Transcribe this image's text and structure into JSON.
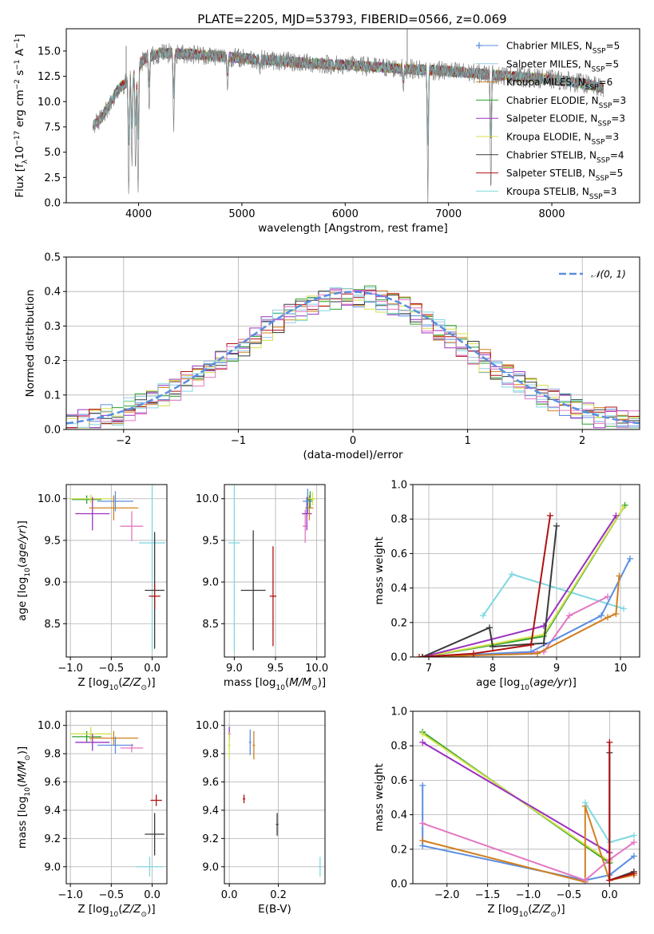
{
  "chart_data": [
    {
      "type": "line",
      "panel": "spectrum",
      "title": "PLATE=2205, MJD=53793, FIBERID=0566, z=0.069",
      "xlabel": "wavelength [Angstrom, rest frame]",
      "ylabel": "Flux [f",
      "xlim": [
        3300,
        8850
      ],
      "ylim": [
        0,
        17.2
      ],
      "xticks": [
        4000,
        5000,
        6000,
        7000,
        8000
      ],
      "yticks": [
        0.0,
        2.5,
        5.0,
        7.5,
        10.0,
        12.5,
        15.0
      ],
      "legend_position": "upper right",
      "data_color": "#808080",
      "series": [
        {
          "name": "Chabrier MILES, N",
          "nssp": "=5",
          "color": "#5a8ee0"
        },
        {
          "name": "Salpeter MILES, N",
          "nssp": "=5",
          "color": "#9ecae1"
        },
        {
          "name": "Kroupa MILES, N",
          "nssp": "=6",
          "color": "#d08020"
        },
        {
          "name": "Chabrier ELODIE, N",
          "nssp": "=3",
          "color": "#2ca02c"
        },
        {
          "name": "Salpeter ELODIE, N",
          "nssp": "=3",
          "color": "#9b30c0"
        },
        {
          "name": "Kroupa ELODIE, N",
          "nssp": "=3",
          "color": "#d4e04c"
        },
        {
          "name": "Chabrier STELIB, N",
          "nssp": "=4",
          "color": "#3a3a3a"
        },
        {
          "name": "Salpeter STELIB, N",
          "nssp": "=5",
          "color": "#b01010"
        },
        {
          "name": "Kroupa STELIB, N",
          "nssp": "=3",
          "color": "#7fd8e0"
        }
      ],
      "continuum": {
        "x": [
          3550,
          3650,
          3800,
          3950,
          4050,
          4200,
          4500,
          5000,
          5500,
          6000,
          6500,
          7000,
          7500,
          8000,
          8300,
          8500
        ],
        "y": [
          7.5,
          8.5,
          11.2,
          12.5,
          14.2,
          14.8,
          14.7,
          14.3,
          13.9,
          13.6,
          13.3,
          13.0,
          12.6,
          12.2,
          11.8,
          11.3
        ]
      },
      "features": [
        {
          "x": 3905,
          "y": 0.0
        },
        {
          "x": 3935,
          "y": 3.0
        },
        {
          "x": 3970,
          "y": 2.2
        },
        {
          "x": 3995,
          "y": 0.0
        },
        {
          "x": 4102,
          "y": 8.5
        },
        {
          "x": 4340,
          "y": 7.0
        },
        {
          "x": 4861,
          "y": 10.8
        },
        {
          "x": 5175,
          "y": 12.6
        },
        {
          "x": 5893,
          "y": 12.8
        },
        {
          "x": 6563,
          "y": 10.8
        },
        {
          "x": 6800,
          "y": 0.0
        },
        {
          "x": 7410,
          "y": 0.0
        }
      ],
      "spikes": [
        {
          "x": 3880,
          "y": 15.5
        },
        {
          "x": 6600,
          "y": 17.2
        }
      ]
    },
    {
      "type": "histogram",
      "panel": "residuals",
      "xlabel": "(data-model)/error",
      "ylabel": "Normed distribution",
      "xlim": [
        -2.5,
        2.5
      ],
      "ylim": [
        0,
        0.5
      ],
      "xticks": [
        -2,
        -1,
        0,
        1,
        2
      ],
      "yticks": [
        0.0,
        0.1,
        0.2,
        0.3,
        0.4,
        0.5
      ],
      "legend": "𝒩(0, 1)",
      "bin_width": 0.1,
      "gaussian": {
        "mean": 0,
        "sigma": 1,
        "color": "#5a8ee0"
      }
    },
    {
      "type": "scatter",
      "panel": "age-vs-metallicity",
      "xlabel": "Z [log",
      "ylabel": "age  [log",
      "xlim": [
        -1.05,
        0.18
      ],
      "ylim": [
        8.1,
        10.17
      ],
      "xticks": [
        -1.0,
        -0.5,
        0.0
      ],
      "yticks": [
        8.5,
        9.0,
        9.5,
        10.0
      ],
      "points": [
        {
          "x": -0.8,
          "y": 9.99,
          "xerr": 0.18,
          "yerr": 0.05,
          "color": "#2ca02c"
        },
        {
          "x": -0.75,
          "y": 10.0,
          "xerr": 0.25,
          "yerr": 0.05,
          "color": "#d4e04c"
        },
        {
          "x": -0.73,
          "y": 9.82,
          "xerr": 0.21,
          "yerr": 0.2,
          "color": "#9b30c0"
        },
        {
          "x": -0.45,
          "y": 9.97,
          "xerr": 0.22,
          "yerr": 0.12,
          "color": "#5a8ee0"
        },
        {
          "x": -0.47,
          "y": 9.89,
          "xerr": 0.3,
          "yerr": 0.15,
          "color": "#d08020"
        },
        {
          "x": -0.25,
          "y": 9.67,
          "xerr": 0.14,
          "yerr": 0.18,
          "color": "#e377c2"
        },
        {
          "x": 0.0,
          "y": 9.47,
          "xerr": 0.16,
          "yerr": 1.3,
          "color": "#7fd8e0"
        },
        {
          "x": 0.03,
          "y": 8.9,
          "xerr": 0.12,
          "yerr": 0.7,
          "color": "#3a3a3a"
        },
        {
          "x": 0.03,
          "y": 8.83,
          "xerr": 0.07,
          "yerr": 0.16,
          "color": "#b01010"
        }
      ]
    },
    {
      "type": "scatter",
      "panel": "age-vs-mass",
      "xlabel": "mass [log",
      "ylabel": "",
      "xlim": [
        8.88,
        10.1
      ],
      "ylim": [
        8.1,
        10.17
      ],
      "xticks": [
        9.0,
        9.5,
        10.0
      ],
      "yticks": [
        8.5,
        9.0,
        9.5,
        10.0
      ],
      "points": [
        {
          "x": 9.0,
          "y": 9.47,
          "xerr": 0.07,
          "yerr": 1.3,
          "color": "#7fd8e0"
        },
        {
          "x": 9.23,
          "y": 8.9,
          "xerr": 0.15,
          "yerr": 0.72,
          "color": "#3a3a3a"
        },
        {
          "x": 9.47,
          "y": 8.83,
          "xerr": 0.04,
          "yerr": 0.6,
          "color": "#b01010"
        },
        {
          "x": 9.86,
          "y": 9.67,
          "xerr": 0.03,
          "yerr": 0.2,
          "color": "#e377c2"
        },
        {
          "x": 9.88,
          "y": 9.82,
          "xerr": 0.06,
          "yerr": 0.2,
          "color": "#9b30c0"
        },
        {
          "x": 9.91,
          "y": 9.89,
          "xerr": 0.05,
          "yerr": 0.15,
          "color": "#d08020"
        },
        {
          "x": 9.89,
          "y": 9.97,
          "xerr": 0.06,
          "yerr": 0.15,
          "color": "#5a8ee0"
        },
        {
          "x": 9.92,
          "y": 9.99,
          "xerr": 0.04,
          "yerr": 0.1,
          "color": "#2ca02c"
        },
        {
          "x": 9.95,
          "y": 10.0,
          "xerr": 0.04,
          "yerr": 0.08,
          "color": "#d4e04c"
        }
      ]
    },
    {
      "type": "line",
      "panel": "mass-weight-vs-age",
      "xlabel": "age  [log",
      "ylabel": "mass weight",
      "xlim": [
        6.75,
        10.3
      ],
      "ylim": [
        0.0,
        1.0
      ],
      "xticks": [
        7,
        8,
        9,
        10
      ],
      "yticks": [
        0.0,
        0.2,
        0.4,
        0.6,
        0.8,
        1.0
      ],
      "series": [
        {
          "color": "#7fd8e0",
          "x": [
            7.85,
            8.3,
            10.05
          ],
          "y": [
            0.24,
            0.48,
            0.28
          ]
        },
        {
          "color": "#e377c2",
          "x": [
            6.9,
            8.8,
            9.2,
            9.8
          ],
          "y": [
            0.0,
            0.03,
            0.24,
            0.35
          ]
        },
        {
          "color": "#5a8ee0",
          "x": [
            6.9,
            8.6,
            9.7,
            10.15
          ],
          "y": [
            0.0,
            0.03,
            0.24,
            0.57
          ]
        },
        {
          "color": "#d08020",
          "x": [
            6.9,
            8.7,
            9.8,
            9.93,
            9.98
          ],
          "y": [
            0.0,
            0.02,
            0.23,
            0.25,
            0.47
          ]
        },
        {
          "color": "#2ca02c",
          "x": [
            6.9,
            8.8,
            10.07
          ],
          "y": [
            0.0,
            0.12,
            0.88
          ]
        },
        {
          "color": "#d4e04c",
          "x": [
            6.9,
            8.8,
            10.05
          ],
          "y": [
            0.0,
            0.13,
            0.87
          ]
        },
        {
          "color": "#9b30c0",
          "x": [
            6.9,
            8.8,
            9.93
          ],
          "y": [
            0.0,
            0.18,
            0.82
          ]
        },
        {
          "color": "#3a3a3a",
          "x": [
            6.9,
            7.95,
            8.0,
            8.8,
            9.0
          ],
          "y": [
            0.0,
            0.17,
            0.06,
            0.08,
            0.76
          ]
        },
        {
          "color": "#b01010",
          "x": [
            6.85,
            7.7,
            8.6,
            8.9
          ],
          "y": [
            0.0,
            0.02,
            0.07,
            0.82
          ]
        }
      ]
    },
    {
      "type": "scatter",
      "panel": "mass-vs-metallicity",
      "xlabel": "Z [log",
      "ylabel": "mass [log",
      "xlim": [
        -1.05,
        0.18
      ],
      "ylim": [
        8.88,
        10.1
      ],
      "xticks": [
        -1.0,
        -0.5,
        0.0
      ],
      "yticks": [
        9.0,
        9.2,
        9.4,
        9.6,
        9.8,
        10.0
      ],
      "points": [
        {
          "x": -0.8,
          "y": 9.92,
          "xerr": 0.18,
          "yerr": 0.04,
          "color": "#2ca02c"
        },
        {
          "x": -0.75,
          "y": 9.94,
          "xerr": 0.25,
          "yerr": 0.05,
          "color": "#d4e04c"
        },
        {
          "x": -0.73,
          "y": 9.88,
          "xerr": 0.21,
          "yerr": 0.06,
          "color": "#9b30c0"
        },
        {
          "x": -0.45,
          "y": 9.86,
          "xerr": 0.22,
          "yerr": 0.06,
          "color": "#5a8ee0"
        },
        {
          "x": -0.47,
          "y": 9.91,
          "xerr": 0.3,
          "yerr": 0.05,
          "color": "#d08020"
        },
        {
          "x": -0.25,
          "y": 9.84,
          "xerr": 0.14,
          "yerr": 0.03,
          "color": "#e377c2"
        },
        {
          "x": 0.05,
          "y": 9.47,
          "xerr": 0.07,
          "yerr": 0.04,
          "color": "#b01010"
        },
        {
          "x": 0.03,
          "y": 9.23,
          "xerr": 0.12,
          "yerr": 0.15,
          "color": "#3a3a3a"
        },
        {
          "x": -0.03,
          "y": 9.0,
          "xerr": 0.16,
          "yerr": 0.07,
          "color": "#7fd8e0"
        }
      ]
    },
    {
      "type": "scatter",
      "panel": "mass-vs-extinction",
      "xlabel": "E(B-V)",
      "ylabel": "",
      "xlim": [
        -0.02,
        0.39
      ],
      "ylim": [
        8.88,
        10.1
      ],
      "xticks": [
        0.0,
        0.2
      ],
      "yticks": [
        9.0,
        9.2,
        9.4,
        9.6,
        9.8,
        10.0
      ],
      "points": [
        {
          "x": 0.0,
          "y": 9.94,
          "xerr": 0.0,
          "yerr": 0.05,
          "color": "#9b30c0"
        },
        {
          "x": 0.0,
          "y": 9.86,
          "xerr": 0.0,
          "yerr": 0.09,
          "color": "#d4e04c"
        },
        {
          "x": 0.085,
          "y": 9.88,
          "xerr": 0.0,
          "yerr": 0.09,
          "color": "#5a8ee0"
        },
        {
          "x": 0.1,
          "y": 9.86,
          "xerr": 0.0,
          "yerr": 0.1,
          "color": "#d08020"
        },
        {
          "x": 0.06,
          "y": 9.48,
          "xerr": 0.0,
          "yerr": 0.03,
          "color": "#b01010"
        },
        {
          "x": 0.195,
          "y": 9.3,
          "xerr": 0.0,
          "yerr": 0.08,
          "color": "#3a3a3a"
        },
        {
          "x": 0.37,
          "y": 9.0,
          "xerr": 0.0,
          "yerr": 0.07,
          "color": "#7fd8e0"
        }
      ]
    },
    {
      "type": "line",
      "panel": "mass-weight-vs-metallicity",
      "xlabel": "Z [log",
      "ylabel": "mass weight",
      "xlim": [
        -2.42,
        0.37
      ],
      "ylim": [
        0.0,
        1.0
      ],
      "xticks": [
        -2.0,
        -1.5,
        -1.0,
        -0.5,
        0.0
      ],
      "yticks": [
        0.0,
        0.2,
        0.4,
        0.6,
        0.8,
        1.0
      ],
      "series": [
        {
          "color": "#2ca02c",
          "x": [
            -2.3,
            0.0
          ],
          "y": [
            0.88,
            0.12
          ]
        },
        {
          "color": "#d4e04c",
          "x": [
            -2.3,
            0.0
          ],
          "y": [
            0.87,
            0.13
          ]
        },
        {
          "color": "#9b30c0",
          "x": [
            -2.3,
            0.0
          ],
          "y": [
            0.82,
            0.18
          ]
        },
        {
          "color": "#5a8ee0",
          "x": [
            -2.3,
            -2.3,
            -0.3,
            0.0,
            0.3
          ],
          "y": [
            0.57,
            0.22,
            0.02,
            0.05,
            0.16
          ]
        },
        {
          "color": "#d08020",
          "x": [
            -2.3,
            -0.3,
            -0.3,
            0.0,
            0.3
          ],
          "y": [
            0.25,
            0.01,
            0.45,
            0.02,
            0.05
          ]
        },
        {
          "color": "#e377c2",
          "x": [
            -2.3,
            -0.3,
            0.0,
            0.3
          ],
          "y": [
            0.35,
            0.02,
            0.14,
            0.24
          ]
        },
        {
          "color": "#7fd8e0",
          "x": [
            -0.3,
            0.0,
            0.3
          ],
          "y": [
            0.47,
            0.24,
            0.28
          ]
        },
        {
          "color": "#3a3a3a",
          "x": [
            0.0,
            0.0,
            0.3
          ],
          "y": [
            0.76,
            0.02,
            0.07
          ]
        },
        {
          "color": "#b01010",
          "x": [
            0.0,
            0.0,
            0.3
          ],
          "y": [
            0.82,
            0.02,
            0.06
          ]
        }
      ]
    }
  ]
}
